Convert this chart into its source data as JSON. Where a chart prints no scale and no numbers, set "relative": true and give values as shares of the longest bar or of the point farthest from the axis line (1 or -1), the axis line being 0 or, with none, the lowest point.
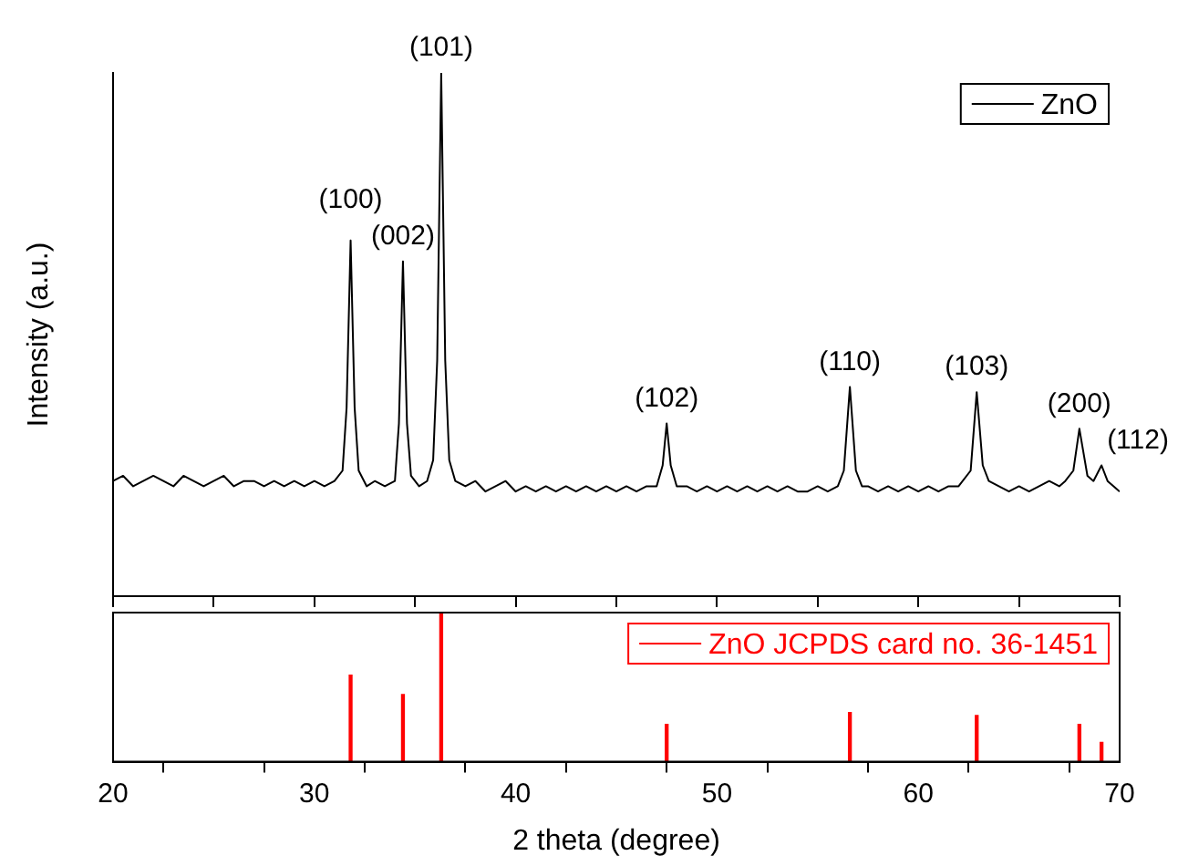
{
  "chart_data": [
    {
      "type": "line",
      "ylabel": "Intensity (a.u.)",
      "relative": true,
      "xlim": [
        20,
        70
      ],
      "xticks": [
        20,
        {
          "value": 25,
          "label": null
        },
        30,
        {
          "value": 35,
          "label": null
        },
        40,
        {
          "value": 45,
          "label": null
        },
        50,
        {
          "value": 55,
          "label": null
        },
        60,
        {
          "value": 65,
          "label": null
        },
        70
      ],
      "tick_labels": false,
      "legend": "top right",
      "marker": "none",
      "grid": false,
      "x": [
        20,
        20.5,
        21,
        21.5,
        22,
        22.5,
        23,
        23.5,
        24,
        24.5,
        25,
        25.5,
        26,
        26.5,
        27,
        27.5,
        28,
        28.5,
        29,
        29.5,
        30,
        30.5,
        31,
        31.4,
        31.6,
        31.8,
        32.0,
        32.2,
        32.6,
        33,
        33.5,
        34.0,
        34.2,
        34.4,
        34.6,
        34.8,
        35.2,
        35.6,
        35.9,
        36.1,
        36.3,
        36.5,
        36.7,
        37,
        37.5,
        38,
        38.5,
        39,
        39.5,
        40,
        40.5,
        41,
        41.5,
        42,
        42.5,
        43,
        43.5,
        44,
        44.5,
        45,
        45.5,
        46,
        46.5,
        47,
        47.3,
        47.5,
        47.7,
        48,
        48.5,
        49,
        49.5,
        50,
        50.5,
        51,
        51.5,
        52,
        52.5,
        53,
        53.5,
        54,
        54.5,
        55,
        55.5,
        56,
        56.3,
        56.6,
        56.9,
        57.2,
        57.5,
        58,
        58.5,
        59,
        59.5,
        60,
        60.5,
        61,
        61.5,
        62,
        62.6,
        62.9,
        63.2,
        63.5,
        64,
        64.5,
        65,
        65.5,
        66,
        66.5,
        67,
        67.3,
        67.7,
        68.0,
        68.4,
        68.7,
        69.1,
        69.4,
        69.7,
        70
      ],
      "annotations": [
        {
          "text": "(100)",
          "x": 31.8,
          "y": 0.68
        },
        {
          "text": "(002)",
          "x": 34.4,
          "y": 0.64
        },
        {
          "text": "(101)",
          "x": 36.3,
          "y": 1
        },
        {
          "text": "(102)",
          "x": 47.5,
          "y": 0.33
        },
        {
          "text": "(110)",
          "x": 56.6,
          "y": 0.4
        },
        {
          "text": "(103)",
          "x": 62.9,
          "y": 0.39
        },
        {
          "text": "(200)",
          "x": 68.0,
          "y": 0.32
        },
        {
          "text": "(112)",
          "x": 69.1,
          "y": 0.25
        }
      ],
      "series": [
        {
          "name": "ZnO",
          "color": "#000000",
          "values": [
            0.22,
            0.23,
            0.21,
            0.22,
            0.23,
            0.22,
            0.21,
            0.23,
            0.22,
            0.21,
            0.22,
            0.23,
            0.21,
            0.22,
            0.22,
            0.21,
            0.22,
            0.21,
            0.22,
            0.21,
            0.22,
            0.21,
            0.22,
            0.24,
            0.36,
            0.68,
            0.36,
            0.24,
            0.21,
            0.22,
            0.21,
            0.22,
            0.33,
            0.64,
            0.33,
            0.23,
            0.21,
            0.22,
            0.26,
            0.45,
            1,
            0.45,
            0.26,
            0.22,
            0.21,
            0.22,
            0.2,
            0.21,
            0.22,
            0.2,
            0.21,
            0.2,
            0.21,
            0.2,
            0.21,
            0.2,
            0.21,
            0.2,
            0.21,
            0.2,
            0.21,
            0.2,
            0.21,
            0.21,
            0.25,
            0.33,
            0.25,
            0.21,
            0.21,
            0.2,
            0.21,
            0.2,
            0.21,
            0.2,
            0.21,
            0.2,
            0.21,
            0.2,
            0.21,
            0.2,
            0.2,
            0.21,
            0.2,
            0.21,
            0.24,
            0.4,
            0.24,
            0.21,
            0.21,
            0.2,
            0.21,
            0.2,
            0.21,
            0.2,
            0.21,
            0.2,
            0.21,
            0.21,
            0.24,
            0.39,
            0.25,
            0.22,
            0.21,
            0.2,
            0.21,
            0.2,
            0.21,
            0.22,
            0.21,
            0.22,
            0.24,
            0.32,
            0.23,
            0.22,
            0.25,
            0.22,
            0.21,
            0.2
          ]
        }
      ]
    },
    {
      "type": "bar",
      "xlabel": "2 theta (degree)",
      "relative": true,
      "xlim": [
        20,
        70
      ],
      "xticks": [
        20,
        {
          "value": 25,
          "label": null
        },
        30,
        {
          "value": 35,
          "label": null
        },
        40,
        {
          "value": 45,
          "label": null
        },
        50,
        {
          "value": 55,
          "label": null
        },
        60,
        {
          "value": 65,
          "label": null
        },
        70
      ],
      "tick_labels": "x",
      "legend": "top right",
      "grid": false,
      "x": [
        31.8,
        34.4,
        36.3,
        47.5,
        56.6,
        62.9,
        68.0,
        69.1
      ],
      "series": [
        {
          "name": "ZnO JCPDS card no. 36-1451",
          "color": "#ff0000",
          "values": [
            0.58,
            0.45,
            1,
            0.25,
            0.33,
            0.31,
            0.25,
            0.13
          ]
        }
      ]
    }
  ]
}
